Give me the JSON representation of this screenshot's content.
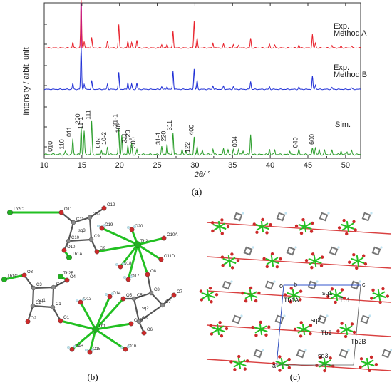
{
  "chart_data": {
    "type": "line",
    "title": "",
    "xlabel": "2θ/ °",
    "ylabel": "Intensity / arbit. unit",
    "xlim": [
      10,
      52
    ],
    "xticks": [
      10,
      15,
      20,
      25,
      30,
      35,
      40,
      45,
      50
    ],
    "series": [
      {
        "name": "Exp.\nMethod A",
        "color": "#e8202a",
        "peaks": [
          [
            13.8,
            0.12
          ],
          [
            14.9,
            1.0
          ],
          [
            15.3,
            0.14
          ],
          [
            16.3,
            0.22
          ],
          [
            18.4,
            0.14
          ],
          [
            19.9,
            0.48
          ],
          [
            21.1,
            0.14
          ],
          [
            21.6,
            0.11
          ],
          [
            22.3,
            0.16
          ],
          [
            25.6,
            0.07
          ],
          [
            26.3,
            0.08
          ],
          [
            27.1,
            0.35
          ],
          [
            29.9,
            0.55
          ],
          [
            30.3,
            0.2
          ],
          [
            32.4,
            0.1
          ],
          [
            33.8,
            0.08
          ],
          [
            35.1,
            0.07
          ],
          [
            35.8,
            0.06
          ],
          [
            37.4,
            0.2
          ],
          [
            39.9,
            0.07
          ],
          [
            40.6,
            0.06
          ],
          [
            43.8,
            0.06
          ],
          [
            45.6,
            0.28
          ],
          [
            46.0,
            0.1
          ],
          [
            48.2,
            0.05
          ],
          [
            49.4,
            0.04
          ],
          [
            50.8,
            0.04
          ]
        ]
      },
      {
        "name": "Exp.\nMethod B",
        "color": "#1f2fd6",
        "peaks": [
          [
            13.8,
            0.14
          ],
          [
            14.9,
            1.0
          ],
          [
            15.3,
            0.12
          ],
          [
            16.3,
            0.2
          ],
          [
            18.4,
            0.12
          ],
          [
            19.9,
            0.38
          ],
          [
            21.1,
            0.16
          ],
          [
            21.6,
            0.12
          ],
          [
            22.3,
            0.14
          ],
          [
            25.6,
            0.06
          ],
          [
            26.3,
            0.07
          ],
          [
            27.1,
            0.42
          ],
          [
            29.9,
            0.46
          ],
          [
            30.3,
            0.2
          ],
          [
            32.4,
            0.08
          ],
          [
            33.8,
            0.07
          ],
          [
            35.1,
            0.06
          ],
          [
            37.4,
            0.18
          ],
          [
            39.9,
            0.06
          ],
          [
            43.8,
            0.05
          ],
          [
            45.6,
            0.3
          ],
          [
            46.0,
            0.1
          ],
          [
            48.2,
            0.04
          ],
          [
            50.8,
            0.03
          ]
        ]
      },
      {
        "name": "Sim.",
        "color": "#2a9d2a",
        "peaks": [
          [
            11.3,
            0.01
          ],
          [
            12.8,
            0.04
          ],
          [
            13.8,
            0.2
          ],
          [
            14.9,
            0.36
          ],
          [
            15.3,
            0.3
          ],
          [
            16.3,
            0.42
          ],
          [
            17.6,
            0.06
          ],
          [
            18.4,
            0.1
          ],
          [
            19.9,
            0.33
          ],
          [
            20.3,
            0.25
          ],
          [
            21.1,
            0.12
          ],
          [
            21.6,
            0.15
          ],
          [
            22.3,
            0.06
          ],
          [
            25.6,
            0.1
          ],
          [
            26.3,
            0.14
          ],
          [
            27.1,
            0.28
          ],
          [
            28.3,
            0.06
          ],
          [
            28.8,
            0.05
          ],
          [
            29.9,
            0.22
          ],
          [
            30.3,
            0.1
          ],
          [
            31.0,
            0.05
          ],
          [
            32.4,
            0.07
          ],
          [
            33.8,
            0.08
          ],
          [
            34.4,
            0.06
          ],
          [
            35.1,
            0.06
          ],
          [
            35.8,
            0.07
          ],
          [
            36.4,
            0.05
          ],
          [
            37.4,
            0.26
          ],
          [
            39.9,
            0.07
          ],
          [
            40.6,
            0.06
          ],
          [
            42.6,
            0.05
          ],
          [
            43.8,
            0.06
          ],
          [
            45.6,
            0.08
          ],
          [
            46.0,
            0.1
          ],
          [
            46.5,
            0.06
          ],
          [
            47.2,
            0.05
          ],
          [
            48.2,
            0.05
          ],
          [
            49.4,
            0.05
          ],
          [
            50.2,
            0.04
          ],
          [
            50.8,
            0.05
          ]
        ]
      }
    ],
    "reflection_labels": [
      {
        "text": "010",
        "x": 11.3
      },
      {
        "text": "110",
        "x": 12.8
      },
      {
        "text": "011",
        "x": 13.8
      },
      {
        "text": "200",
        "x": 14.9
      },
      {
        "text": "11-1",
        "x": 15.3
      },
      {
        "text": "111",
        "x": 16.3
      },
      {
        "text": "002",
        "x": 17.6
      },
      {
        "text": "10-2",
        "x": 18.4
      },
      {
        "text": "21-1",
        "x": 19.9
      },
      {
        "text": "102",
        "x": 20.3
      },
      {
        "text": "211",
        "x": 21.1
      },
      {
        "text": "020",
        "x": 21.6
      },
      {
        "text": "300",
        "x": 22.3
      },
      {
        "text": "31-1",
        "x": 25.6
      },
      {
        "text": "220",
        "x": 26.3
      },
      {
        "text": "311",
        "x": 27.1
      },
      {
        "text": "122",
        "x": 29.5
      },
      {
        "text": "400",
        "x": 30.0
      },
      {
        "text": "004",
        "x": 35.8
      },
      {
        "text": "040",
        "x": 43.8
      },
      {
        "text": "600",
        "x": 46.0
      }
    ]
  },
  "panels": {
    "a": "(a)",
    "b": "(b)",
    "c": "(c)"
  },
  "structure_b": {
    "atom_labels": [
      "Tb2C",
      "O12",
      "O11",
      "C12",
      "sq3",
      "C11",
      "C9",
      "O19",
      "O20",
      "O10A",
      "C10",
      "O10",
      "Tb1A",
      "O9",
      "O18",
      "O11D",
      "Tb2",
      "Tb1C",
      "O3",
      "Tb2B",
      "O4",
      "O8",
      "O17",
      "C3",
      "C4",
      "C8",
      "C5",
      "C7",
      "O7",
      "O13",
      "O14",
      "O5",
      "sq1",
      "sq2",
      "C2",
      "C1",
      "O2",
      "O1",
      "Tb1",
      "O3D",
      "C6",
      "O6",
      "O4B",
      "O15",
      "O16"
    ]
  },
  "structure_c": {
    "cell_labels": [
      "o",
      "b",
      "c",
      "sq1",
      "Tb1A",
      "Tb1",
      "sq2",
      "Tb2",
      "Tb2B",
      "sq3",
      "a"
    ]
  }
}
